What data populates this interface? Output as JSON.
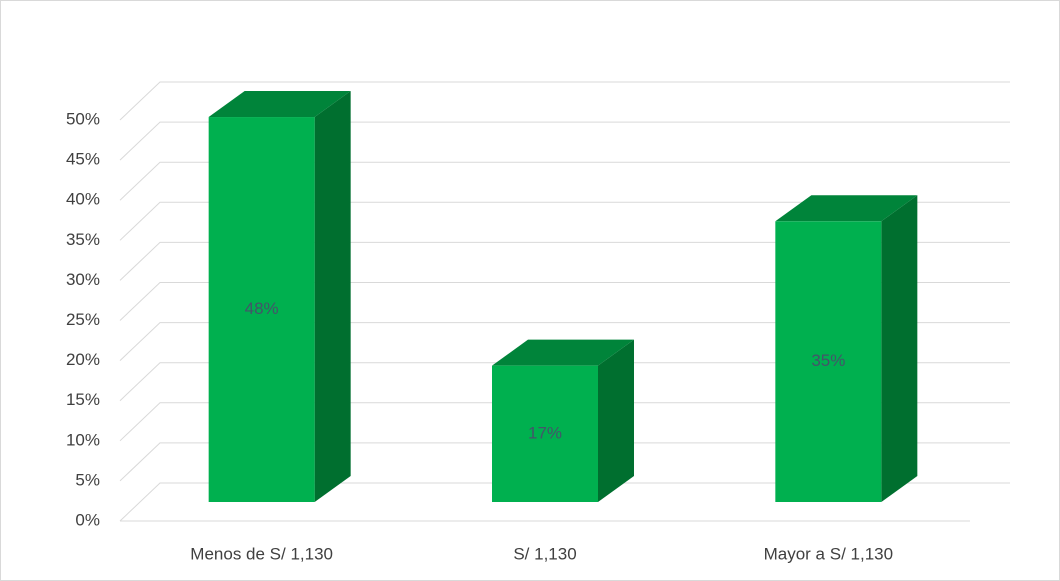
{
  "chart_data": {
    "type": "bar3d",
    "categories": [
      "Menos de S/ 1,130",
      "S/ 1,130",
      "Mayor a S/ 1,130"
    ],
    "values": [
      48,
      17,
      35
    ],
    "value_labels": [
      "48%",
      "17%",
      "35%"
    ],
    "color": "#00b04f",
    "ylim": [
      0,
      50
    ],
    "yticks": [
      {
        "value": 0,
        "label": "0%"
      },
      {
        "value": 5,
        "label": "5%"
      },
      {
        "value": 10,
        "label": "10%"
      },
      {
        "value": 15,
        "label": "15%"
      },
      {
        "value": 20,
        "label": "20%"
      },
      {
        "value": 25,
        "label": "25%"
      },
      {
        "value": 30,
        "label": "30%"
      },
      {
        "value": 35,
        "label": "35%"
      },
      {
        "value": 40,
        "label": "40%"
      },
      {
        "value": 45,
        "label": "45%"
      },
      {
        "value": 50,
        "label": "50%"
      }
    ],
    "grid": true
  }
}
